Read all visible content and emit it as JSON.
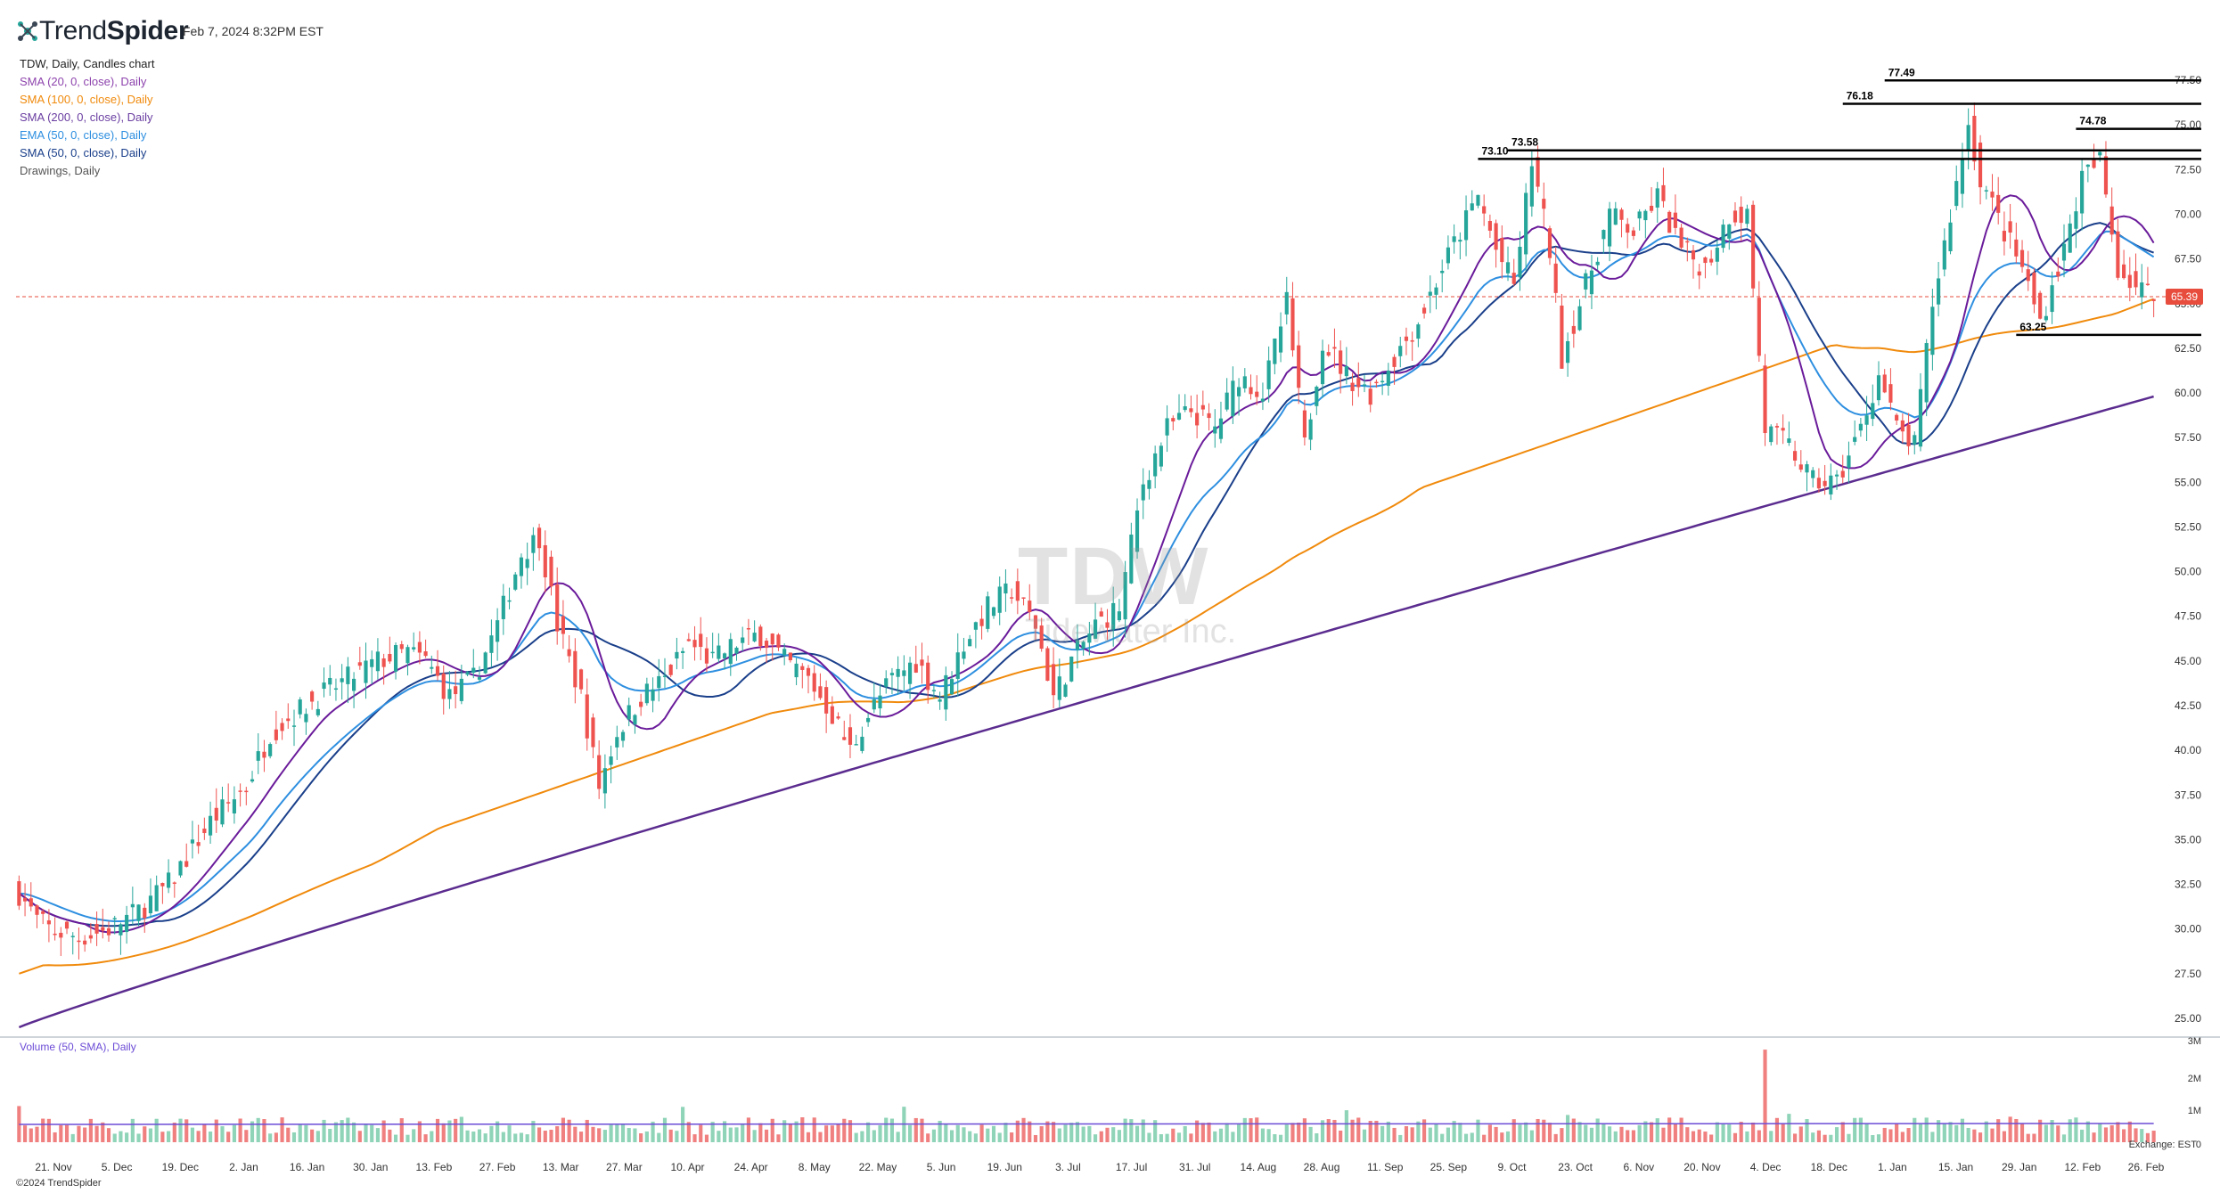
{
  "header": {
    "brand_light": "Trend",
    "brand_bold": "Spider",
    "timestamp": "Feb 7, 2024 8:32PM EST"
  },
  "legend": {
    "symbol_line": "TDW, Daily, Candles chart",
    "indicators": [
      {
        "label": "SMA (20, 0, close), Daily",
        "color": "#8e44ad"
      },
      {
        "label": "SMA (100, 0, close), Daily",
        "color": "#f08a0c"
      },
      {
        "label": "SMA (200, 0, close), Daily",
        "color": "#6a3ea1"
      },
      {
        "label": "EMA (50, 0, close), Daily",
        "color": "#2e8fe0"
      },
      {
        "label": "SMA (50, 0, close), Daily",
        "color": "#1a3f8a"
      },
      {
        "label": "Drawings, Daily",
        "color": "#555555"
      }
    ],
    "volume_label": "Volume (50, SMA), Daily"
  },
  "watermark": {
    "ticker": "TDW",
    "company": "Tidewater Inc."
  },
  "footer": {
    "exchange": "Exchange: EST",
    "copyright": "©2024 TrendSpider"
  },
  "chart_data": {
    "type": "candlestick",
    "symbol": "TDW",
    "timeframe": "Daily",
    "ylim": [
      24,
      79
    ],
    "y_ticks": [
      "25.00",
      "27.50",
      "30.00",
      "32.50",
      "35.00",
      "37.50",
      "40.00",
      "42.50",
      "45.00",
      "47.50",
      "50.00",
      "52.50",
      "55.00",
      "57.50",
      "60.00",
      "62.50",
      "65.00",
      "67.50",
      "70.00",
      "72.50",
      "75.00",
      "77.50"
    ],
    "volume_ticks": [
      "3M",
      "2M",
      "1M",
      "0"
    ],
    "x_ticks": [
      "21. Nov",
      "5. Dec",
      "19. Dec",
      "2. Jan",
      "16. Jan",
      "30. Jan",
      "13. Feb",
      "27. Feb",
      "13. Mar",
      "27. Mar",
      "10. Apr",
      "24. Apr",
      "8. May",
      "22. May",
      "5. Jun",
      "19. Jun",
      "3. Jul",
      "17. Jul",
      "31. Jul",
      "14. Aug",
      "28. Aug",
      "11. Sep",
      "25. Sep",
      "9. Oct",
      "23. Oct",
      "6. Nov",
      "20. Nov",
      "4. Dec",
      "18. Dec",
      "1. Jan",
      "15. Jan",
      "29. Jan",
      "12. Feb",
      "26. Feb"
    ],
    "last_price": "65.39",
    "levels": [
      {
        "label": "77.49",
        "value": 77.49,
        "from_bar": 312
      },
      {
        "label": "76.18",
        "value": 76.18,
        "from_bar": 305
      },
      {
        "label": "74.78",
        "value": 74.78,
        "from_bar": 344
      },
      {
        "label": "73.58",
        "value": 73.58,
        "from_bar": 249
      },
      {
        "label": "73.10",
        "value": 73.1,
        "from_bar": 244
      },
      {
        "label": "63.25",
        "value": 63.25,
        "from_bar": 334
      }
    ],
    "price_anchors": [
      [
        0,
        32
      ],
      [
        3,
        30.5
      ],
      [
        5,
        30
      ],
      [
        10,
        29.5
      ],
      [
        15,
        30
      ],
      [
        20,
        31
      ],
      [
        25,
        32.5
      ],
      [
        28,
        34
      ],
      [
        32,
        36
      ],
      [
        38,
        38
      ],
      [
        42,
        41
      ],
      [
        46,
        42
      ],
      [
        50,
        43
      ],
      [
        55,
        44
      ],
      [
        60,
        45
      ],
      [
        65,
        45.5
      ],
      [
        68,
        45
      ],
      [
        72,
        43
      ],
      [
        76,
        44
      ],
      [
        80,
        47
      ],
      [
        84,
        51
      ],
      [
        87,
        52
      ],
      [
        90,
        47
      ],
      [
        94,
        43
      ],
      [
        97,
        38
      ],
      [
        100,
        41
      ],
      [
        104,
        43
      ],
      [
        108,
        44
      ],
      [
        112,
        46
      ],
      [
        116,
        45
      ],
      [
        120,
        46
      ],
      [
        124,
        46.5
      ],
      [
        128,
        45
      ],
      [
        132,
        44
      ],
      [
        136,
        42
      ],
      [
        139,
        40
      ],
      [
        142,
        42
      ],
      [
        146,
        44
      ],
      [
        150,
        45
      ],
      [
        154,
        43
      ],
      [
        158,
        46
      ],
      [
        162,
        48
      ],
      [
        166,
        49
      ],
      [
        170,
        47
      ],
      [
        173,
        43
      ],
      [
        176,
        45
      ],
      [
        180,
        47
      ],
      [
        184,
        48
      ],
      [
        188,
        55
      ],
      [
        192,
        58
      ],
      [
        196,
        59
      ],
      [
        200,
        58
      ],
      [
        204,
        61
      ],
      [
        208,
        60
      ],
      [
        212,
        65
      ],
      [
        215,
        57
      ],
      [
        218,
        63
      ],
      [
        222,
        61
      ],
      [
        226,
        60
      ],
      [
        230,
        62
      ],
      [
        234,
        64
      ],
      [
        238,
        67
      ],
      [
        241,
        69
      ],
      [
        244,
        71
      ],
      [
        247,
        68
      ],
      [
        250,
        66
      ],
      [
        253,
        73
      ],
      [
        256,
        68
      ],
      [
        258,
        62
      ],
      [
        262,
        66
      ],
      [
        266,
        70
      ],
      [
        270,
        69
      ],
      [
        274,
        71
      ],
      [
        278,
        68
      ],
      [
        282,
        67
      ],
      [
        286,
        70
      ],
      [
        289,
        70
      ],
      [
        292,
        58
      ],
      [
        296,
        57
      ],
      [
        300,
        55
      ],
      [
        304,
        55
      ],
      [
        308,
        58
      ],
      [
        311,
        61
      ],
      [
        314,
        58
      ],
      [
        317,
        57
      ],
      [
        320,
        65
      ],
      [
        323,
        70
      ],
      [
        326,
        75
      ],
      [
        328,
        72
      ],
      [
        332,
        69
      ],
      [
        335,
        67
      ],
      [
        338,
        64
      ],
      [
        342,
        68
      ],
      [
        345,
        72
      ],
      [
        348,
        73
      ],
      [
        351,
        67
      ],
      [
        354,
        66
      ],
      [
        357,
        65.39
      ]
    ],
    "sma_levels": [
      {
        "name": "SMA (200)",
        "start": 24.5,
        "end": 59.8
      },
      {
        "name": "SMA (100)",
        "start": 24.5,
        "end": 65.9
      }
    ]
  }
}
